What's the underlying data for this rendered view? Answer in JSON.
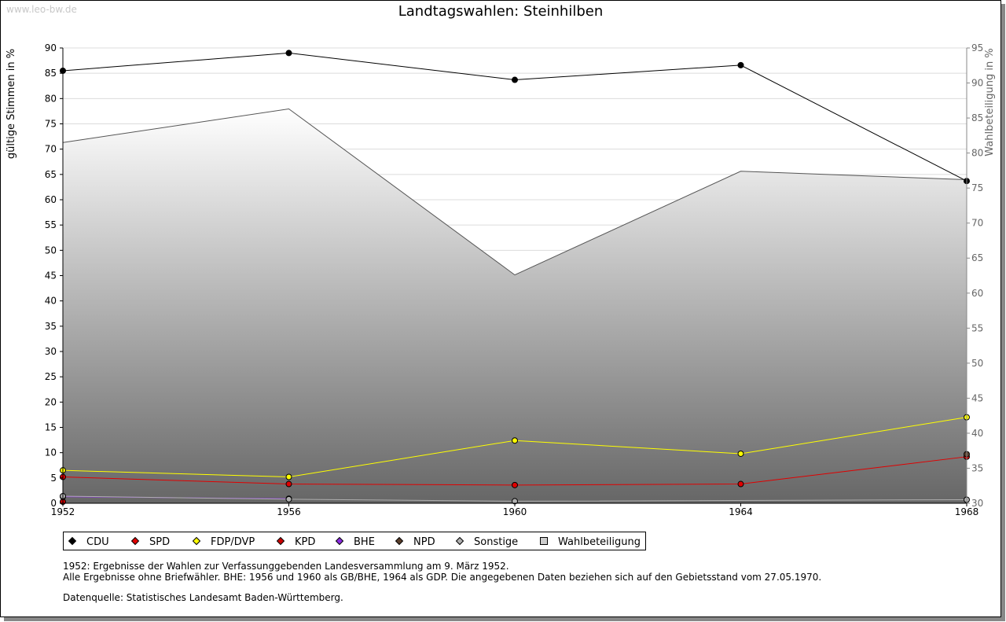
{
  "watermark": "www.leo-bw.de",
  "notes": [
    "1952: Ergebnisse der Wahlen zur Verfassunggebenden Landesversammlung am 9. März 1952.",
    "Alle Ergebnisse ohne Briefwähler. BHE: 1956 und 1960 als GB/BHE, 1964 als GDP. Die angegebenen Daten beziehen sich auf den Gebietsstand vom 27.05.1970.",
    "Datenquelle: Statistisches Landesamt Baden-Württemberg."
  ],
  "chart_data": {
    "type": "line",
    "title": "Landtagswahlen: Steinhilben",
    "ylabel": "gültige Stimmen in %",
    "y2label": "Wahlbeteiligung in %",
    "categories": [
      "1952",
      "1956",
      "1960",
      "1964",
      "1968"
    ],
    "ylim": [
      0,
      90
    ],
    "yticks": [
      0,
      5,
      10,
      15,
      20,
      25,
      30,
      35,
      40,
      45,
      50,
      55,
      60,
      65,
      70,
      75,
      80,
      85,
      90
    ],
    "y2lim": [
      30,
      95
    ],
    "y2ticks": [
      30,
      35,
      40,
      45,
      50,
      55,
      60,
      65,
      70,
      75,
      80,
      85,
      90,
      95
    ],
    "grid": true,
    "legend_position": "bottom-left",
    "series": [
      {
        "name": "CDU",
        "color": "#000000",
        "values": [
          85.5,
          89.0,
          83.7,
          86.6,
          63.7
        ]
      },
      {
        "name": "SPD",
        "color": "#e00000",
        "values": [
          5.2,
          3.8,
          3.6,
          3.8,
          9.2
        ]
      },
      {
        "name": "FDP/DVP",
        "color": "#ffff00",
        "values": [
          6.5,
          5.2,
          12.4,
          9.8,
          17.0
        ]
      },
      {
        "name": "KPD",
        "color": "#cc0000",
        "values": [
          0.3,
          null,
          null,
          null,
          null
        ]
      },
      {
        "name": "BHE",
        "color": "#8a2be2",
        "values": [
          1.3,
          0.9,
          null,
          null,
          null
        ]
      },
      {
        "name": "NPD",
        "color": "#5a3e2b",
        "values": [
          null,
          null,
          null,
          null,
          9.7
        ]
      },
      {
        "name": "Sonstige",
        "color": "#b0b0b0",
        "values": [
          1.4,
          0.8,
          0.4,
          null,
          0.7
        ]
      }
    ],
    "area_series": {
      "name": "Wahlbeteiligung",
      "axis": "right",
      "values": [
        81.5,
        86.3,
        62.6,
        77.4,
        76.2
      ]
    }
  }
}
